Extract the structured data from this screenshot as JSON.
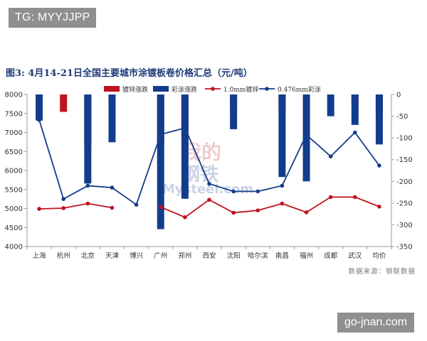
{
  "watermark_tag": "TG: MYYJJPP",
  "site_tag": "go-jnan.com",
  "chart_watermark": {
    "text1": "我的",
    "text2": "钢铁",
    "text3": "Mysteel.com"
  },
  "chart_data": {
    "type": "bar",
    "title": "图3: 4月14-21日全国主要城市涂镀板卷价格汇总（元/吨）",
    "source": "数据来源：钢联数据",
    "categories": [
      "上海",
      "杭州",
      "北京",
      "天津",
      "博兴",
      "广州",
      "郑州",
      "西安",
      "沈阳",
      "哈尔滨",
      "南昌",
      "福州",
      "成都",
      "武汉",
      "均价"
    ],
    "left_axis": {
      "min": 4000,
      "max": 8000,
      "step": 500,
      "ticks": [
        4000,
        4500,
        5000,
        5500,
        6000,
        6500,
        7000,
        7500,
        8000
      ]
    },
    "right_axis": {
      "min": -350,
      "max": 0,
      "step": 50,
      "ticks": [
        -350,
        -300,
        -250,
        -200,
        -150,
        -100,
        -50,
        0
      ]
    },
    "bar_series": [
      {
        "name": "镀锌涨跌",
        "color": "#c0121e",
        "axis": "right",
        "values": [
          -10,
          -40,
          -120,
          -15,
          null,
          -115,
          -100,
          null,
          -30,
          null,
          -40,
          -95,
          null,
          -25,
          -45
        ]
      },
      {
        "name": "彩涂涨跌",
        "color": "#123d8c",
        "axis": "right",
        "values": [
          -60,
          null,
          -205,
          -110,
          null,
          -310,
          -240,
          null,
          -80,
          null,
          -190,
          -200,
          -50,
          -70,
          -115
        ]
      }
    ],
    "line_series": [
      {
        "name": "1.0mm镀锌",
        "color": "#c0121e",
        "axis": "left",
        "values": [
          4990,
          5010,
          5130,
          5020,
          null,
          5040,
          4770,
          5230,
          4890,
          4950,
          5130,
          4900,
          5300,
          5300,
          5050
        ]
      },
      {
        "name": "0.476mm彩涂",
        "color": "#123d8c",
        "axis": "left",
        "values": [
          7330,
          5250,
          5600,
          5550,
          5100,
          6950,
          7120,
          5650,
          5450,
          5450,
          5600,
          6940,
          6370,
          7000,
          6130
        ]
      }
    ],
    "legend": [
      "镀锌涨跌",
      "彩涂涨跌",
      "1.0mm镀锌",
      "0.476mm彩涂"
    ],
    "grid": false
  }
}
